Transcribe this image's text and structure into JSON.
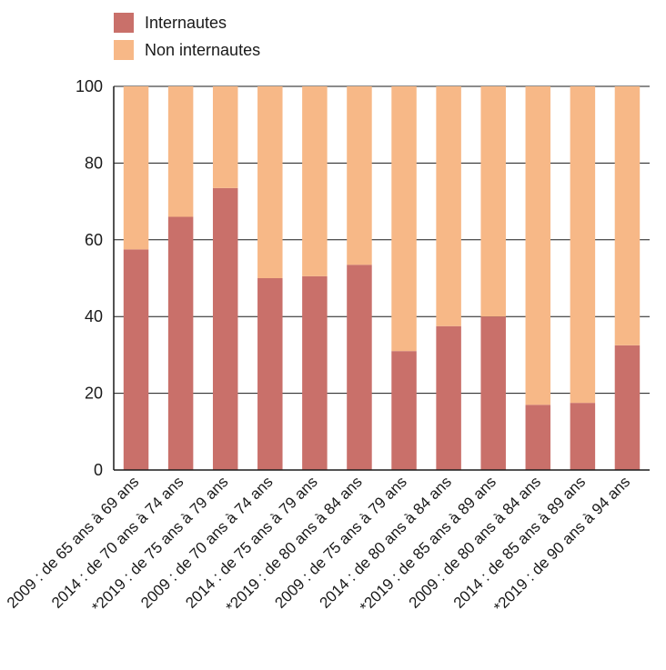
{
  "chart_data": {
    "type": "bar",
    "stacked": true,
    "categories": [
      "2009 : de 65 ans à 69 ans",
      "2014 : de 70 ans à 74 ans",
      "*2019 : de 75 ans à 79 ans",
      "2009 : de 70 ans à 74 ans",
      "2014 : de 75 ans à 79 ans",
      "*2019 : de 80 ans à 84 ans",
      "2009 : de 75 ans à 79 ans",
      "2014 : de 80 ans à 84 ans",
      "*2019 : de 85 ans à 89 ans",
      "2009 : de 80 ans à 84 ans",
      "2014 : de 85 ans à 89 ans",
      "*2019 : de 90 ans à 94 ans"
    ],
    "series": [
      {
        "name": "Internautes",
        "color": "#c9706a",
        "values": [
          57.5,
          66,
          73.5,
          50,
          50.5,
          53.5,
          31,
          37.5,
          40,
          17,
          17.5,
          32.5
        ]
      },
      {
        "name": "Non internautes",
        "color": "#f7b887",
        "values": [
          42.5,
          34,
          26.5,
          50,
          49.5,
          46.5,
          69,
          62.5,
          60,
          83,
          82.5,
          67.5
        ]
      }
    ],
    "ylim": [
      0,
      100
    ],
    "yticks": [
      "0",
      "20",
      "40",
      "60",
      "80",
      "100"
    ],
    "grid": true,
    "legend_position": "top-left"
  }
}
